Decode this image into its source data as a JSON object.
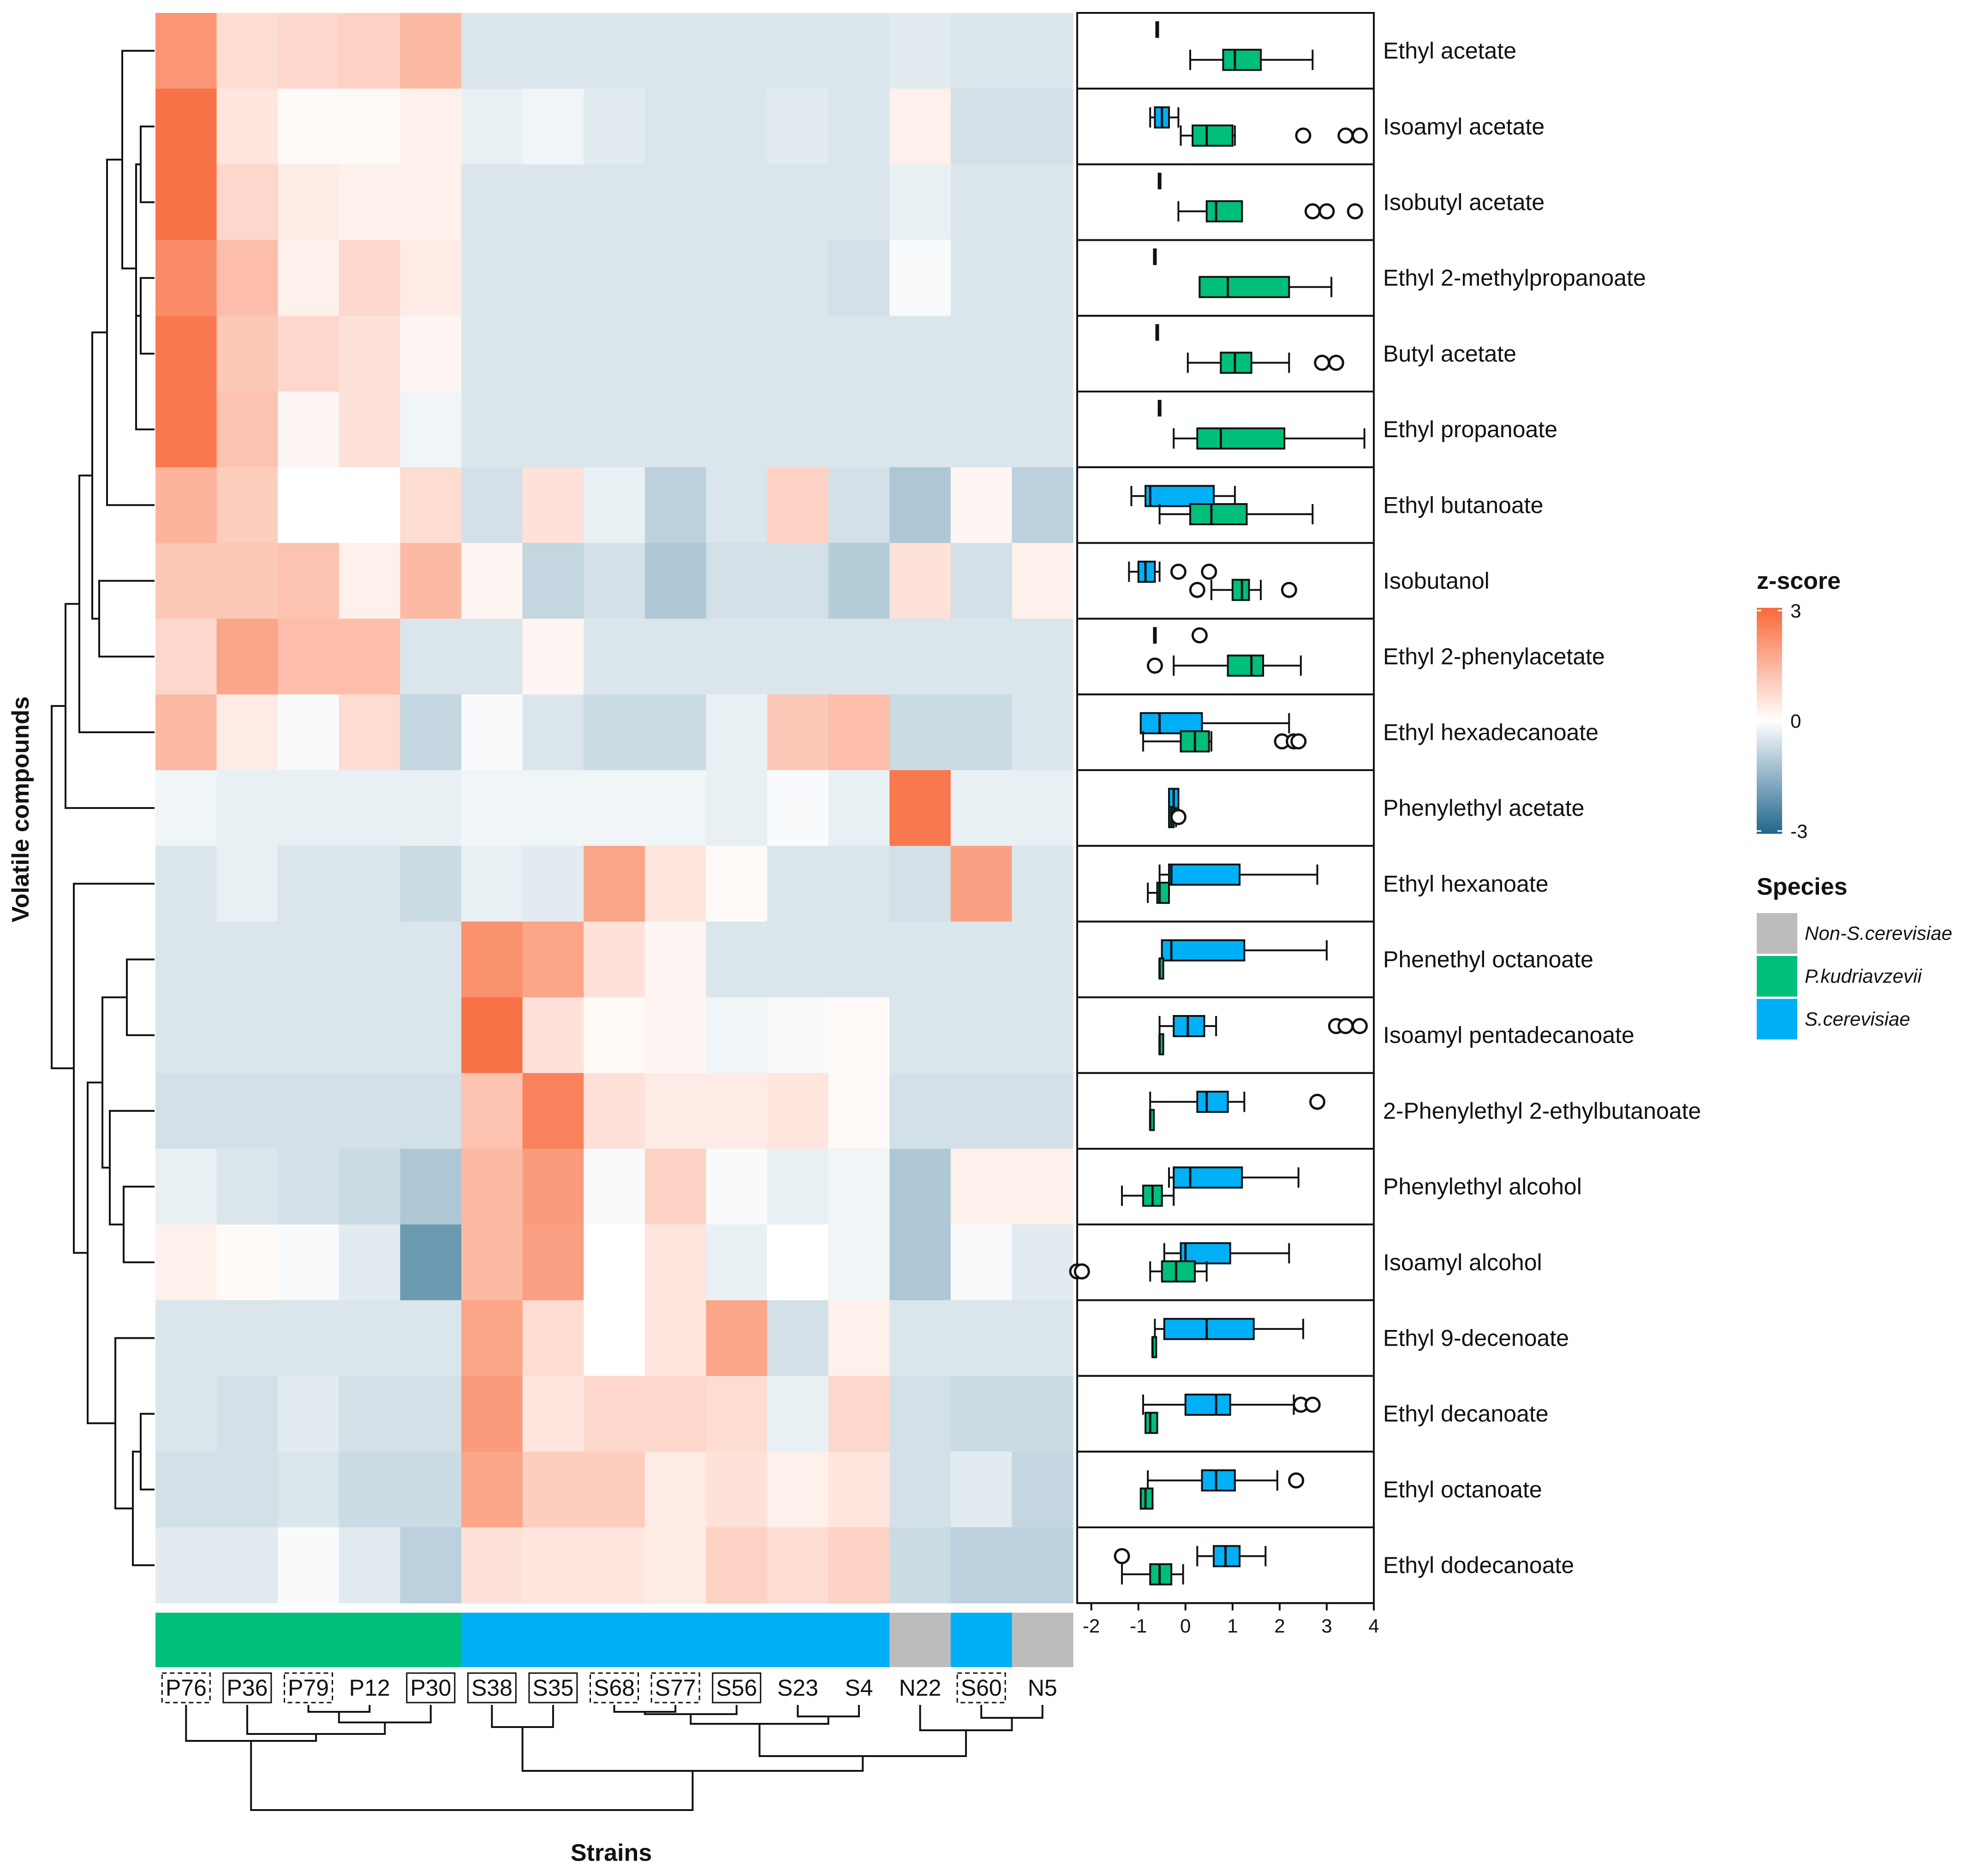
{
  "chart_data": {
    "type": "heatmap",
    "xlabel": "Strains",
    "ylabel": "Volatile compounds",
    "strains": [
      "P76",
      "P36",
      "P79",
      "P12",
      "P30",
      "S38",
      "S35",
      "S68",
      "S77",
      "S56",
      "S23",
      "S4",
      "N22",
      "S60",
      "N5"
    ],
    "strain_box": [
      "dashed",
      "solid",
      "dashed",
      "none",
      "solid",
      "solid",
      "solid",
      "dashed",
      "dashed",
      "solid",
      "none",
      "none",
      "none",
      "dashed",
      "none"
    ],
    "strain_species": [
      "P.kudriavzevii",
      "P.kudriavzevii",
      "P.kudriavzevii",
      "P.kudriavzevii",
      "P.kudriavzevii",
      "S.cerevisiae",
      "S.cerevisiae",
      "S.cerevisiae",
      "S.cerevisiae",
      "S.cerevisiae",
      "S.cerevisiae",
      "S.cerevisiae",
      "Non-S.cerevisiae",
      "S.cerevisiae",
      "Non-S.cerevisiae"
    ],
    "compounds": [
      "Ethyl acetate",
      "Isoamyl acetate",
      "Isobutyl acetate",
      "Ethyl 2-methylpropanoate",
      "Butyl acetate",
      "Ethyl propanoate",
      "Ethyl butanoate",
      "Isobutanol",
      "Ethyl 2-phenylacetate",
      "Ethyl hexadecanoate",
      "Phenylethyl acetate",
      "Ethyl hexanoate",
      "Phenethyl octanoate",
      "Isoamyl pentadecanoate",
      "2-Phenylethyl 2-ethylbutanoate",
      "Phenylethyl alcohol",
      "Isoamyl alcohol",
      "Ethyl 9-decenoate",
      "Ethyl decanoate",
      "Ethyl octanoate",
      "Ethyl dodecanoate"
    ],
    "zscores": [
      [
        2.1,
        0.7,
        0.8,
        0.9,
        1.4,
        -0.5,
        -0.5,
        -0.5,
        -0.5,
        -0.5,
        -0.5,
        -0.5,
        -0.4,
        -0.5,
        -0.5
      ],
      [
        2.8,
        0.5,
        0.1,
        0.1,
        0.3,
        -0.3,
        -0.2,
        -0.4,
        -0.5,
        -0.5,
        -0.4,
        -0.5,
        0.3,
        -0.6,
        -0.6
      ],
      [
        2.8,
        0.8,
        0.4,
        0.3,
        0.3,
        -0.5,
        -0.5,
        -0.5,
        -0.5,
        -0.5,
        -0.5,
        -0.5,
        -0.3,
        -0.5,
        -0.5
      ],
      [
        2.3,
        1.3,
        0.3,
        0.8,
        0.4,
        -0.5,
        -0.5,
        -0.5,
        -0.5,
        -0.5,
        -0.5,
        -0.6,
        -0.1,
        -0.5,
        -0.5
      ],
      [
        2.7,
        1.1,
        0.8,
        0.6,
        0.2,
        -0.5,
        -0.5,
        -0.5,
        -0.5,
        -0.5,
        -0.5,
        -0.5,
        -0.5,
        -0.5,
        -0.5
      ],
      [
        2.7,
        1.2,
        0.2,
        0.6,
        -0.2,
        -0.5,
        -0.5,
        -0.5,
        -0.5,
        -0.5,
        -0.5,
        -0.5,
        -0.5,
        -0.5,
        -0.5
      ],
      [
        1.5,
        1.0,
        0.0,
        0.0,
        0.7,
        -0.6,
        0.6,
        -0.3,
        -0.9,
        -0.5,
        0.9,
        -0.6,
        -1.1,
        0.2,
        -0.9
      ],
      [
        1.1,
        1.1,
        1.2,
        0.3,
        1.4,
        0.2,
        -0.8,
        -0.6,
        -1.1,
        -0.6,
        -0.6,
        -1.0,
        0.6,
        -0.6,
        0.3
      ],
      [
        0.8,
        1.8,
        1.3,
        1.3,
        -0.5,
        -0.5,
        0.2,
        -0.5,
        -0.5,
        -0.5,
        -0.5,
        -0.5,
        -0.5,
        -0.5,
        -0.5
      ],
      [
        1.4,
        0.4,
        -0.1,
        0.7,
        -0.8,
        -0.1,
        -0.5,
        -0.7,
        -0.7,
        -0.3,
        1.1,
        1.3,
        -0.7,
        -0.7,
        -0.5
      ],
      [
        -0.2,
        -0.3,
        -0.3,
        -0.3,
        -0.3,
        -0.2,
        -0.2,
        -0.2,
        -0.2,
        -0.3,
        -0.1,
        -0.3,
        2.7,
        -0.3,
        -0.3
      ],
      [
        -0.5,
        -0.3,
        -0.5,
        -0.5,
        -0.7,
        -0.3,
        -0.4,
        1.8,
        0.5,
        0.1,
        -0.5,
        -0.5,
        -0.6,
        1.9,
        -0.5
      ],
      [
        -0.5,
        -0.5,
        -0.5,
        -0.5,
        -0.5,
        2.2,
        1.8,
        0.6,
        0.2,
        -0.5,
        -0.5,
        -0.5,
        -0.5,
        -0.5,
        -0.5
      ],
      [
        -0.5,
        -0.5,
        -0.5,
        -0.5,
        -0.5,
        2.8,
        0.6,
        0.1,
        0.2,
        -0.2,
        -0.1,
        0.1,
        -0.5,
        -0.5,
        -0.5
      ],
      [
        -0.6,
        -0.6,
        -0.6,
        -0.6,
        -0.6,
        1.2,
        2.5,
        0.6,
        0.4,
        0.4,
        0.5,
        0.1,
        -0.6,
        -0.6,
        -0.6
      ],
      [
        -0.3,
        -0.5,
        -0.6,
        -0.7,
        -1.1,
        1.4,
        2.0,
        -0.1,
        0.9,
        -0.1,
        -0.3,
        -0.2,
        -1.1,
        0.3,
        0.3
      ],
      [
        0.3,
        0.1,
        -0.1,
        -0.4,
        -2.0,
        1.4,
        1.9,
        0.0,
        0.5,
        -0.3,
        0.0,
        -0.2,
        -1.1,
        -0.1,
        -0.4
      ],
      [
        -0.5,
        -0.5,
        -0.5,
        -0.5,
        -0.5,
        1.8,
        0.7,
        0.0,
        0.5,
        1.8,
        -0.6,
        0.3,
        -0.5,
        -0.5,
        -0.5
      ],
      [
        -0.5,
        -0.6,
        -0.4,
        -0.6,
        -0.6,
        2.0,
        0.5,
        0.8,
        0.8,
        0.7,
        -0.3,
        0.8,
        -0.6,
        -0.7,
        -0.7
      ],
      [
        -0.6,
        -0.6,
        -0.5,
        -0.7,
        -0.7,
        1.8,
        1.0,
        1.0,
        0.4,
        0.6,
        0.3,
        0.5,
        -0.6,
        -0.4,
        -0.8
      ],
      [
        -0.4,
        -0.4,
        -0.1,
        -0.4,
        -0.9,
        0.6,
        0.5,
        0.5,
        0.4,
        0.9,
        0.7,
        0.9,
        -0.7,
        -0.9,
        -0.9
      ]
    ],
    "zscore_range": [
      -3,
      3
    ],
    "zscore_ticks": [
      "3",
      "0",
      "-3"
    ],
    "colorbar_title": "z-score",
    "species_title": "Species",
    "species": [
      {
        "name": "Non-S.cerevisiae",
        "color": "#bcbcbc"
      },
      {
        "name": "P.kudriavzevii",
        "color": "#00bf7a"
      },
      {
        "name": "S.cerevisiae",
        "color": "#00b0f6"
      }
    ],
    "box_axis_range": [
      -2.3,
      4
    ],
    "box_axis_ticks": [
      "-2",
      "-1",
      "0",
      "1",
      "2",
      "3",
      "4"
    ],
    "boxplots": [
      [
        null,
        {
          "min": -0.6,
          "q1": -0.6,
          "med": -0.6,
          "q3": -0.6,
          "max": -0.6,
          "out": []
        },
        {
          "min": 0.1,
          "q1": 0.8,
          "med": 1.05,
          "q3": 1.6,
          "max": 2.7,
          "out": []
        }
      ],
      [
        {
          "min": -0.75,
          "q1": -0.65,
          "med": -0.5,
          "q3": -0.35,
          "max": -0.15,
          "out": []
        },
        null,
        {
          "min": -0.1,
          "q1": 0.15,
          "med": 0.45,
          "q3": 1.0,
          "max": 1.05,
          "out": [
            2.5,
            3.4,
            3.7
          ]
        }
      ],
      [
        null,
        {
          "min": -0.55,
          "q1": -0.55,
          "med": -0.55,
          "q3": -0.55,
          "max": -0.55,
          "out": []
        },
        {
          "min": -0.15,
          "q1": 0.45,
          "med": 0.65,
          "q3": 1.2,
          "max": 1.2,
          "out": [
            2.7,
            3.0,
            3.6
          ]
        }
      ],
      [
        null,
        {
          "min": -0.65,
          "q1": -0.65,
          "med": -0.65,
          "q3": -0.65,
          "max": -0.65,
          "out": []
        },
        {
          "min": 0.3,
          "q1": 0.3,
          "med": 0.9,
          "q3": 2.2,
          "max": 3.1,
          "out": []
        }
      ],
      [
        null,
        {
          "min": -0.6,
          "q1": -0.6,
          "med": -0.6,
          "q3": -0.6,
          "max": -0.6,
          "out": []
        },
        {
          "min": 0.05,
          "q1": 0.75,
          "med": 1.05,
          "q3": 1.4,
          "max": 2.2,
          "out": [
            2.9,
            3.2
          ]
        }
      ],
      [
        null,
        {
          "min": -0.55,
          "q1": -0.55,
          "med": -0.55,
          "q3": -0.55,
          "max": -0.55,
          "out": []
        },
        {
          "min": -0.25,
          "q1": 0.25,
          "med": 0.75,
          "q3": 2.1,
          "max": 3.8,
          "out": []
        }
      ],
      [
        {
          "min": -1.15,
          "q1": -0.85,
          "med": -0.75,
          "q3": 0.6,
          "max": 1.05,
          "out": []
        },
        null,
        {
          "min": -0.55,
          "q1": 0.1,
          "med": 0.55,
          "q3": 1.3,
          "max": 2.7,
          "out": []
        }
      ],
      [
        {
          "min": -1.2,
          "q1": -1.0,
          "med": -0.85,
          "q3": -0.65,
          "max": -0.55,
          "out": [
            -0.15,
            0.5
          ]
        },
        null,
        {
          "min": 0.55,
          "q1": 1.0,
          "med": 1.2,
          "q3": 1.35,
          "max": 1.6,
          "out": [
            0.25,
            2.2
          ]
        }
      ],
      [
        null,
        {
          "min": -0.65,
          "q1": -0.65,
          "med": -0.65,
          "q3": -0.65,
          "max": -0.65,
          "out": [
            0.3
          ]
        },
        {
          "min": -0.25,
          "q1": 0.9,
          "med": 1.4,
          "q3": 1.65,
          "max": 2.45,
          "out": [
            -0.65
          ]
        }
      ],
      [
        {
          "min": -0.95,
          "q1": -0.95,
          "med": -0.55,
          "q3": 0.35,
          "max": 2.2,
          "out": []
        },
        null,
        {
          "min": -0.9,
          "q1": -0.1,
          "med": 0.2,
          "q3": 0.5,
          "max": 0.55,
          "out": [
            2.05,
            2.3,
            2.4
          ]
        }
      ],
      [
        {
          "min": -0.35,
          "q1": -0.35,
          "med": -0.25,
          "q3": -0.15,
          "max": -0.15,
          "out": []
        },
        null,
        {
          "min": -0.35,
          "q1": -0.35,
          "med": -0.3,
          "q3": -0.25,
          "max": -0.2,
          "out": [
            -0.15
          ]
        }
      ],
      [
        {
          "min": -0.55,
          "q1": -0.35,
          "med": -0.3,
          "q3": 1.15,
          "max": 2.8,
          "out": []
        },
        null,
        {
          "min": -0.8,
          "q1": -0.6,
          "med": -0.55,
          "q3": -0.35,
          "max": -0.35,
          "out": []
        }
      ],
      [
        {
          "min": -0.5,
          "q1": -0.5,
          "med": -0.3,
          "q3": 1.25,
          "max": 3.0,
          "out": []
        },
        null,
        {
          "min": -0.55,
          "q1": -0.55,
          "med": -0.55,
          "q3": -0.55,
          "max": -0.55,
          "out": []
        }
      ],
      [
        {
          "min": -0.55,
          "q1": -0.25,
          "med": 0.05,
          "q3": 0.4,
          "max": 0.65,
          "out": [
            3.2,
            3.4,
            3.7
          ]
        },
        null,
        {
          "min": -0.55,
          "q1": -0.55,
          "med": -0.55,
          "q3": -0.55,
          "max": -0.55,
          "out": []
        }
      ],
      [
        {
          "min": -0.75,
          "q1": 0.25,
          "med": 0.45,
          "q3": 0.9,
          "max": 1.25,
          "out": [
            2.8
          ]
        },
        null,
        {
          "min": -0.75,
          "q1": -0.75,
          "med": -0.75,
          "q3": -0.75,
          "max": -0.75,
          "out": []
        }
      ],
      [
        {
          "min": -0.35,
          "q1": -0.25,
          "med": 0.1,
          "q3": 1.2,
          "max": 2.4,
          "out": []
        },
        null,
        {
          "min": -1.35,
          "q1": -0.9,
          "med": -0.7,
          "q3": -0.5,
          "max": -0.25,
          "out": []
        }
      ],
      [
        {
          "min": -0.45,
          "q1": -0.1,
          "med": 0.0,
          "q3": 0.95,
          "max": 2.2,
          "out": []
        },
        null,
        {
          "min": -0.75,
          "q1": -0.5,
          "med": -0.2,
          "q3": 0.2,
          "max": 0.45,
          "out": [
            -2.3,
            -2.2
          ]
        }
      ],
      [
        {
          "min": -0.65,
          "q1": -0.45,
          "med": 0.45,
          "q3": 1.45,
          "max": 2.5,
          "out": []
        },
        null,
        {
          "min": -0.7,
          "q1": -0.7,
          "med": -0.7,
          "q3": -0.7,
          "max": -0.7,
          "out": []
        }
      ],
      [
        {
          "min": -0.9,
          "q1": 0.0,
          "med": 0.65,
          "q3": 0.95,
          "max": 2.3,
          "out": [
            2.45,
            2.7
          ]
        },
        null,
        {
          "min": -0.85,
          "q1": -0.85,
          "med": -0.75,
          "q3": -0.6,
          "max": -0.6,
          "out": []
        }
      ],
      [
        {
          "min": -0.8,
          "q1": 0.35,
          "med": 0.65,
          "q3": 1.05,
          "max": 1.95,
          "out": [
            2.35
          ]
        },
        null,
        {
          "min": -0.95,
          "q1": -0.95,
          "med": -0.85,
          "q3": -0.7,
          "max": -0.7,
          "out": []
        }
      ],
      [
        {
          "min": 0.25,
          "q1": 0.6,
          "med": 0.85,
          "q3": 1.15,
          "max": 1.7,
          "out": [
            -1.35
          ]
        },
        null,
        {
          "min": -1.35,
          "q1": -0.75,
          "med": -0.55,
          "q3": -0.3,
          "max": -0.05,
          "out": []
        }
      ]
    ]
  }
}
